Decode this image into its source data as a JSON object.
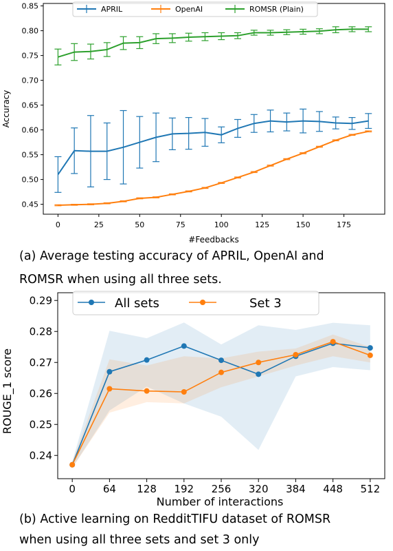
{
  "chart_data": [
    {
      "type": "line",
      "title": "",
      "xlabel": "#Feedbacks",
      "ylabel": "Accuracy",
      "xlim": [
        -9,
        200
      ],
      "ylim": [
        0.43,
        0.855
      ],
      "xticks": [
        0,
        25,
        50,
        75,
        100,
        125,
        150,
        175
      ],
      "yticks": [
        0.45,
        0.5,
        0.55,
        0.6,
        0.65,
        0.7,
        0.75,
        0.8,
        0.85
      ],
      "legend_position": "top-center",
      "series": [
        {
          "name": "APRIL",
          "color": "#1f77b4",
          "x": [
            0,
            10,
            20,
            30,
            40,
            50,
            60,
            70,
            80,
            90,
            100,
            110,
            120,
            130,
            140,
            150,
            160,
            170,
            180,
            190
          ],
          "y": [
            0.51,
            0.558,
            0.557,
            0.557,
            0.565,
            0.575,
            0.585,
            0.592,
            0.593,
            0.595,
            0.59,
            0.603,
            0.613,
            0.618,
            0.616,
            0.618,
            0.617,
            0.614,
            0.613,
            0.618
          ],
          "err": [
            0.036,
            0.046,
            0.072,
            0.057,
            0.074,
            0.052,
            0.049,
            0.032,
            0.032,
            0.028,
            0.016,
            0.018,
            0.018,
            0.022,
            0.018,
            0.024,
            0.02,
            0.012,
            0.012,
            0.015
          ]
        },
        {
          "name": "OpenAI",
          "color": "#ff7f0e",
          "x": [
            0,
            10,
            20,
            30,
            40,
            50,
            60,
            70,
            80,
            90,
            100,
            110,
            120,
            130,
            140,
            150,
            160,
            170,
            180,
            190
          ],
          "y": [
            0.448,
            0.449,
            0.45,
            0.452,
            0.456,
            0.462,
            0.464,
            0.47,
            0.476,
            0.483,
            0.493,
            0.504,
            0.515,
            0.528,
            0.541,
            0.553,
            0.566,
            0.579,
            0.59,
            0.597
          ],
          "err": [
            0.001,
            0.001,
            0.001,
            0.001,
            0.001,
            0.001,
            0.001,
            0.001,
            0.001,
            0.001,
            0.001,
            0.001,
            0.001,
            0.001,
            0.001,
            0.001,
            0.001,
            0.001,
            0.001,
            0.001
          ]
        },
        {
          "name": "ROMSR (Plain)",
          "color": "#2ca02c",
          "x": [
            0,
            10,
            20,
            30,
            40,
            50,
            60,
            70,
            80,
            90,
            100,
            110,
            120,
            130,
            140,
            150,
            160,
            170,
            180,
            190
          ],
          "y": [
            0.747,
            0.757,
            0.758,
            0.762,
            0.775,
            0.776,
            0.784,
            0.785,
            0.787,
            0.788,
            0.789,
            0.79,
            0.796,
            0.796,
            0.797,
            0.798,
            0.799,
            0.802,
            0.803,
            0.803
          ],
          "err": [
            0.016,
            0.017,
            0.015,
            0.014,
            0.013,
            0.012,
            0.01,
            0.009,
            0.008,
            0.008,
            0.007,
            0.006,
            0.005,
            0.005,
            0.005,
            0.005,
            0.005,
            0.006,
            0.005,
            0.005
          ]
        }
      ]
    },
    {
      "type": "line",
      "title": "",
      "xlabel": "Number of interactions",
      "ylabel": "ROUGE_1 score",
      "xlim": [
        -25,
        537
      ],
      "ylim": [
        0.2325,
        0.2925
      ],
      "xticks": [
        0,
        64,
        128,
        192,
        256,
        320,
        384,
        448,
        512
      ],
      "yticks": [
        0.24,
        0.25,
        0.26,
        0.27,
        0.28,
        0.29
      ],
      "legend_position": "top-center",
      "series": [
        {
          "name": "All sets",
          "color": "#1f77b4",
          "x": [
            0,
            64,
            128,
            192,
            256,
            320,
            384,
            448,
            512
          ],
          "y": [
            0.237,
            0.267,
            0.2708,
            0.2753,
            0.2707,
            0.2662,
            0.272,
            0.2762,
            0.2747
          ],
          "lower": [
            0.236,
            0.2545,
            0.2622,
            0.2568,
            0.2525,
            0.2418,
            0.2655,
            0.2685,
            0.2675
          ],
          "upper": [
            0.238,
            0.2802,
            0.2778,
            0.2829,
            0.2758,
            0.282,
            0.2805,
            0.2828,
            0.282
          ]
        },
        {
          "name": "Set 3",
          "color": "#ff7f0e",
          "x": [
            0,
            64,
            128,
            192,
            256,
            320,
            384,
            448,
            512
          ],
          "y": [
            0.237,
            0.2615,
            0.2608,
            0.2605,
            0.2668,
            0.27,
            0.2725,
            0.2767,
            0.2723
          ],
          "lower": [
            0.236,
            0.2538,
            0.2572,
            0.2568,
            0.262,
            0.2655,
            0.269,
            0.272,
            0.27
          ],
          "upper": [
            0.238,
            0.271,
            0.269,
            0.272,
            0.2713,
            0.2735,
            0.2745,
            0.279,
            0.275
          ]
        }
      ]
    }
  ],
  "captions": {
    "top_line1": "(a) Average testing accuracy of APRIL, OpenAI and",
    "top_line2": "ROMSR when using all three sets.",
    "bottom_line1": "(b) Active learning on RedditTIFU dataset of ROMSR",
    "bottom_line2": "when using all three sets and set 3 only"
  }
}
